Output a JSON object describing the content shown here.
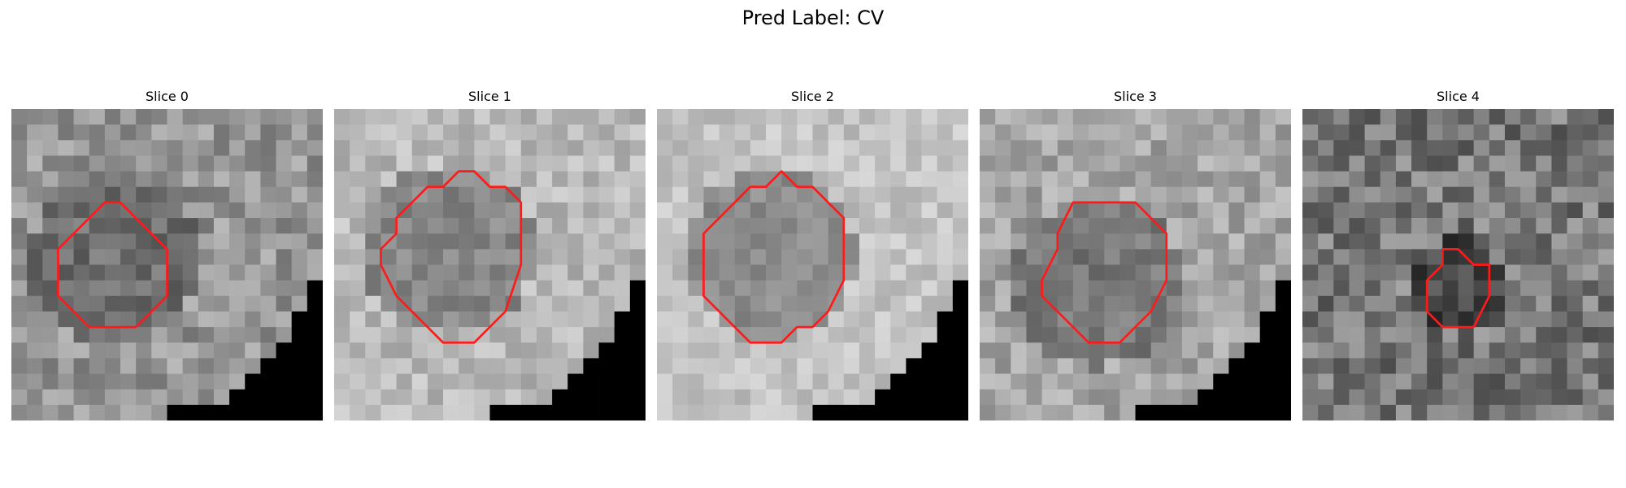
{
  "figure": {
    "title": "Pred Label: CV",
    "contour_color": "#ff1a1a",
    "colormap": "gray",
    "panels": [
      {
        "title": "Slice 0",
        "seed": 11,
        "base": 150,
        "spread": 70,
        "blob": 110,
        "corner": true,
        "contour": [
          [
            6,
            6
          ],
          [
            7,
            6
          ],
          [
            9,
            8
          ],
          [
            10,
            9
          ],
          [
            10,
            12
          ],
          [
            8,
            14
          ],
          [
            5,
            14
          ],
          [
            3,
            12
          ],
          [
            3,
            9
          ],
          [
            5,
            7
          ]
        ]
      },
      {
        "title": "Slice 1",
        "seed": 23,
        "base": 185,
        "spread": 55,
        "blob": 135,
        "corner": true,
        "contour": [
          [
            8,
            4
          ],
          [
            9,
            4
          ],
          [
            10,
            5
          ],
          [
            11,
            5
          ],
          [
            12,
            6
          ],
          [
            12,
            10
          ],
          [
            11,
            13
          ],
          [
            10,
            14
          ],
          [
            9,
            15
          ],
          [
            7,
            15
          ],
          [
            6,
            14
          ],
          [
            5,
            13
          ],
          [
            4,
            12
          ],
          [
            3,
            10
          ],
          [
            3,
            9
          ],
          [
            4,
            8
          ],
          [
            4,
            7
          ],
          [
            5,
            6
          ],
          [
            6,
            5
          ],
          [
            7,
            5
          ]
        ]
      },
      {
        "title": "Slice 2",
        "seed": 37,
        "base": 195,
        "spread": 45,
        "blob": 140,
        "corner": true,
        "contour": [
          [
            8,
            4
          ],
          [
            9,
            5
          ],
          [
            10,
            5
          ],
          [
            11,
            6
          ],
          [
            12,
            7
          ],
          [
            12,
            11
          ],
          [
            11,
            13
          ],
          [
            10,
            14
          ],
          [
            9,
            14
          ],
          [
            8,
            15
          ],
          [
            6,
            15
          ],
          [
            5,
            14
          ],
          [
            4,
            13
          ],
          [
            3,
            12
          ],
          [
            3,
            10
          ],
          [
            3,
            8
          ],
          [
            4,
            7
          ],
          [
            5,
            6
          ],
          [
            6,
            5
          ],
          [
            7,
            5
          ]
        ]
      },
      {
        "title": "Slice 3",
        "seed": 51,
        "base": 165,
        "spread": 60,
        "blob": 120,
        "corner": true,
        "contour": [
          [
            6,
            6
          ],
          [
            10,
            6
          ],
          [
            12,
            8
          ],
          [
            12,
            11
          ],
          [
            11,
            13
          ],
          [
            10,
            14
          ],
          [
            9,
            15
          ],
          [
            7,
            15
          ],
          [
            6,
            14
          ],
          [
            5,
            13
          ],
          [
            4,
            12
          ],
          [
            4,
            11
          ],
          [
            5,
            9
          ],
          [
            5,
            8
          ]
        ]
      },
      {
        "title": "Slice 4",
        "seed": 67,
        "base": 120,
        "spread": 90,
        "blob": 70,
        "corner": false,
        "contour": [
          [
            9,
            9
          ],
          [
            10,
            9
          ],
          [
            11,
            10
          ],
          [
            12,
            10
          ],
          [
            12,
            12
          ],
          [
            11,
            14
          ],
          [
            9,
            14
          ],
          [
            8,
            13
          ],
          [
            8,
            11
          ],
          [
            9,
            10
          ]
        ]
      }
    ]
  }
}
